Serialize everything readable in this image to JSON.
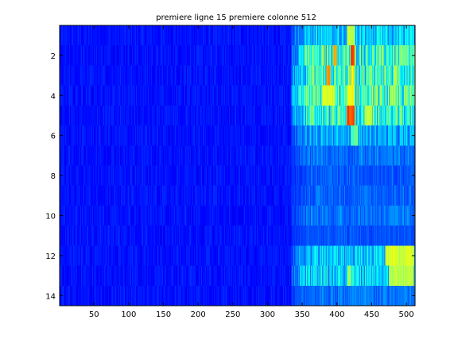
{
  "chart_data": {
    "type": "heatmap",
    "title": "premiere ligne 15 premiere colonne 512",
    "xlabel": "",
    "ylabel": "",
    "colormap": "jet",
    "color_range": [
      0,
      1
    ],
    "xlim": [
      0.5,
      512.5
    ],
    "ylim": [
      14.5,
      0.5
    ],
    "y_direction": "reverse",
    "x_ticks": [
      50,
      100,
      150,
      200,
      250,
      300,
      350,
      400,
      450,
      500
    ],
    "x_tick_labels": [
      "50",
      "100",
      "150",
      "200",
      "250",
      "300",
      "350",
      "400",
      "450",
      "500"
    ],
    "y_ticks": [
      2,
      4,
      6,
      8,
      10,
      12,
      14
    ],
    "y_tick_labels": [
      "2",
      "4",
      "6",
      "8",
      "10",
      "12",
      "14"
    ],
    "n_rows": 14,
    "n_cols": 512,
    "background_level": 0.14,
    "active_start_col": 335,
    "row_intensity": [
      0.55,
      0.85,
      0.9,
      0.9,
      0.8,
      0.45,
      0.3,
      0.22,
      0.25,
      0.3,
      0.2,
      0.55,
      0.6,
      0.3
    ],
    "hotspots": [
      {
        "row": 1,
        "col_from": 415,
        "col_to": 425,
        "value": 0.6
      },
      {
        "row": 2,
        "col_from": 420,
        "col_to": 425,
        "value": 0.85
      },
      {
        "row": 2,
        "col_from": 395,
        "col_to": 400,
        "value": 0.75
      },
      {
        "row": 3,
        "col_from": 385,
        "col_to": 390,
        "value": 0.78
      },
      {
        "row": 3,
        "col_from": 420,
        "col_to": 425,
        "value": 0.7
      },
      {
        "row": 4,
        "col_from": 380,
        "col_to": 395,
        "value": 0.62
      },
      {
        "row": 4,
        "col_from": 415,
        "col_to": 425,
        "value": 0.65
      },
      {
        "row": 5,
        "col_from": 415,
        "col_to": 425,
        "value": 0.85
      },
      {
        "row": 5,
        "col_from": 440,
        "col_to": 450,
        "value": 0.6
      },
      {
        "row": 6,
        "col_from": 420,
        "col_to": 430,
        "value": 0.5
      },
      {
        "row": 12,
        "col_from": 470,
        "col_to": 510,
        "value": 0.62
      },
      {
        "row": 13,
        "col_from": 475,
        "col_to": 510,
        "value": 0.6
      },
      {
        "row": 13,
        "col_from": 415,
        "col_to": 420,
        "value": 0.55
      }
    ]
  }
}
